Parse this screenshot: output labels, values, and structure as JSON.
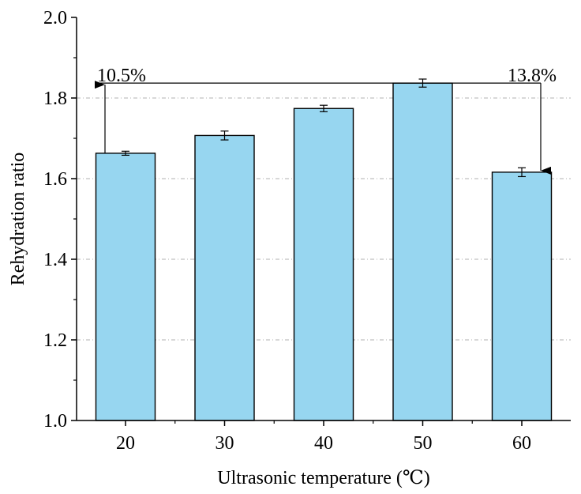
{
  "chart_data": {
    "type": "bar",
    "categories": [
      "20",
      "30",
      "40",
      "50",
      "60"
    ],
    "values": [
      1.663,
      1.707,
      1.774,
      1.837,
      1.616
    ],
    "errors": [
      0.005,
      0.011,
      0.008,
      0.01,
      0.011
    ],
    "xlabel": "Ultrasonic temperature (℃)",
    "ylabel": "Rehydration ratio",
    "ylim": [
      1.0,
      2.0
    ],
    "yticks": [
      "1.0",
      "1.2",
      "1.4",
      "1.6",
      "1.8",
      "2.0"
    ],
    "grid": "horizontal dash-dot at major ticks",
    "annotations": [
      {
        "text": "10.5%",
        "category": "20",
        "direction": "up"
      },
      {
        "text": "13.8%",
        "category": "60",
        "direction": "down"
      }
    ],
    "colors": {
      "bar_fill": "#97d6f0",
      "bar_edge": "#000000",
      "grid": "#b0b0b0"
    }
  }
}
